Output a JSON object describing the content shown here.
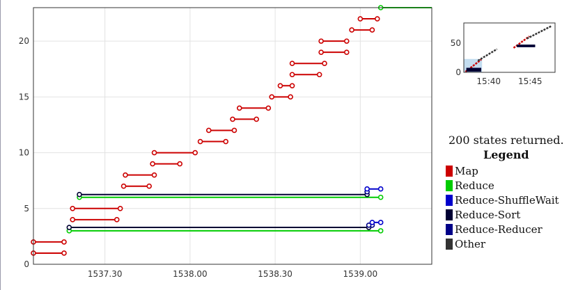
{
  "legend": {
    "states_text": "200 states returned.",
    "title": "Legend",
    "items": [
      {
        "label": "Map",
        "color": "#cc0000"
      },
      {
        "label": "Reduce",
        "color": "#00cc00"
      },
      {
        "label": "Reduce-ShuffleWait",
        "color": "#0000cc"
      },
      {
        "label": "Reduce-Sort",
        "color": "#000033"
      },
      {
        "label": "Reduce-Reducer",
        "color": "#000088"
      },
      {
        "label": "Other",
        "color": "#333333"
      }
    ]
  },
  "chart_data": [
    {
      "type": "timeline",
      "x_unit": "minutes",
      "x_ticks": [
        "1537.30",
        "1538.00",
        "1538.30",
        "1539.00"
      ],
      "x_tick_values": [
        1537.5,
        1538.0,
        1538.5,
        1539.0
      ],
      "xlim": [
        1537.08,
        1539.42
      ],
      "y_ticks": [
        "0",
        "5",
        "10",
        "15",
        "20"
      ],
      "ylim": [
        0,
        23
      ],
      "grid": true,
      "segments": [
        {
          "y": 1,
          "start": 1537.08,
          "end": 1537.26,
          "state": "Map"
        },
        {
          "y": 2,
          "start": 1537.08,
          "end": 1537.26,
          "state": "Map"
        },
        {
          "y": 3,
          "start": 1537.29,
          "end": 1539.12,
          "state": "Reduce"
        },
        {
          "y": 3.3,
          "start": 1537.29,
          "end": 1539.05,
          "state": "Reduce-Sort"
        },
        {
          "y": 3.5,
          "start": 1539.05,
          "end": 1539.07,
          "state": "Reduce-Reducer"
        },
        {
          "y": 3.75,
          "start": 1539.07,
          "end": 1539.12,
          "state": "Reduce-ShuffleWait"
        },
        {
          "y": 4,
          "start": 1537.31,
          "end": 1537.57,
          "state": "Map"
        },
        {
          "y": 5,
          "start": 1537.31,
          "end": 1537.59,
          "state": "Map"
        },
        {
          "y": 6,
          "start": 1537.35,
          "end": 1539.12,
          "state": "Reduce"
        },
        {
          "y": 6.25,
          "start": 1537.35,
          "end": 1539.04,
          "state": "Reduce-Sort"
        },
        {
          "y": 6.5,
          "start": 1539.04,
          "end": 1539.04,
          "state": "Reduce-Reducer"
        },
        {
          "y": 6.75,
          "start": 1539.04,
          "end": 1539.12,
          "state": "Reduce-ShuffleWait"
        },
        {
          "y": 7,
          "start": 1537.61,
          "end": 1537.76,
          "state": "Map"
        },
        {
          "y": 8,
          "start": 1537.62,
          "end": 1537.79,
          "state": "Map"
        },
        {
          "y": 9,
          "start": 1537.78,
          "end": 1537.94,
          "state": "Map"
        },
        {
          "y": 10,
          "start": 1537.79,
          "end": 1538.03,
          "state": "Map"
        },
        {
          "y": 11,
          "start": 1538.06,
          "end": 1538.21,
          "state": "Map"
        },
        {
          "y": 12,
          "start": 1538.11,
          "end": 1538.26,
          "state": "Map"
        },
        {
          "y": 13,
          "start": 1538.25,
          "end": 1538.39,
          "state": "Map"
        },
        {
          "y": 14,
          "start": 1538.29,
          "end": 1538.46,
          "state": "Map"
        },
        {
          "y": 15,
          "start": 1538.48,
          "end": 1538.59,
          "state": "Map"
        },
        {
          "y": 16,
          "start": 1538.53,
          "end": 1538.6,
          "state": "Map"
        },
        {
          "y": 17,
          "start": 1538.6,
          "end": 1538.76,
          "state": "Map"
        },
        {
          "y": 18,
          "start": 1538.6,
          "end": 1538.79,
          "state": "Map"
        },
        {
          "y": 19,
          "start": 1538.77,
          "end": 1538.92,
          "state": "Map"
        },
        {
          "y": 20,
          "start": 1538.77,
          "end": 1538.92,
          "state": "Map"
        },
        {
          "y": 21,
          "start": 1538.95,
          "end": 1539.07,
          "state": "Map"
        },
        {
          "y": 22,
          "start": 1539.0,
          "end": 1539.1,
          "state": "Map"
        },
        {
          "y": 23,
          "start": 1539.12,
          "end": 1539.42,
          "state": "Reduce"
        }
      ]
    },
    {
      "type": "overview",
      "x_ticks": [
        "15:40",
        "15:45"
      ],
      "x_tick_values": [
        15.4,
        15.45
      ],
      "xlim": [
        15.37,
        15.48
      ],
      "y_ticks": [
        "0",
        "50"
      ],
      "ylim": [
        0,
        85
      ],
      "selection": {
        "x": [
          15.37,
          15.392
        ],
        "y": [
          0,
          23
        ]
      },
      "segments": [
        {
          "x0": 15.372,
          "x1": 15.391,
          "y0": 1,
          "y1": 22,
          "state": "Map"
        },
        {
          "x0": 15.387,
          "x1": 15.41,
          "y0": 20,
          "y1": 40,
          "state": "Other"
        },
        {
          "x0": 15.373,
          "x1": 15.391,
          "y0": 3,
          "y1": 3,
          "state": "Reduce-Sort"
        },
        {
          "x0": 15.373,
          "x1": 15.391,
          "y0": 6,
          "y1": 6,
          "state": "Reduce-Sort"
        },
        {
          "x0": 15.43,
          "x1": 15.449,
          "y0": 42,
          "y1": 62,
          "state": "Map"
        },
        {
          "x0": 15.446,
          "x1": 15.476,
          "y0": 58,
          "y1": 80,
          "state": "Other"
        },
        {
          "x0": 15.434,
          "x1": 15.456,
          "y0": 45,
          "y1": 45,
          "state": "Reduce-Sort"
        },
        {
          "x0": 15.434,
          "x1": 15.456,
          "y0": 46,
          "y1": 46,
          "state": "Reduce-Sort"
        }
      ]
    }
  ]
}
